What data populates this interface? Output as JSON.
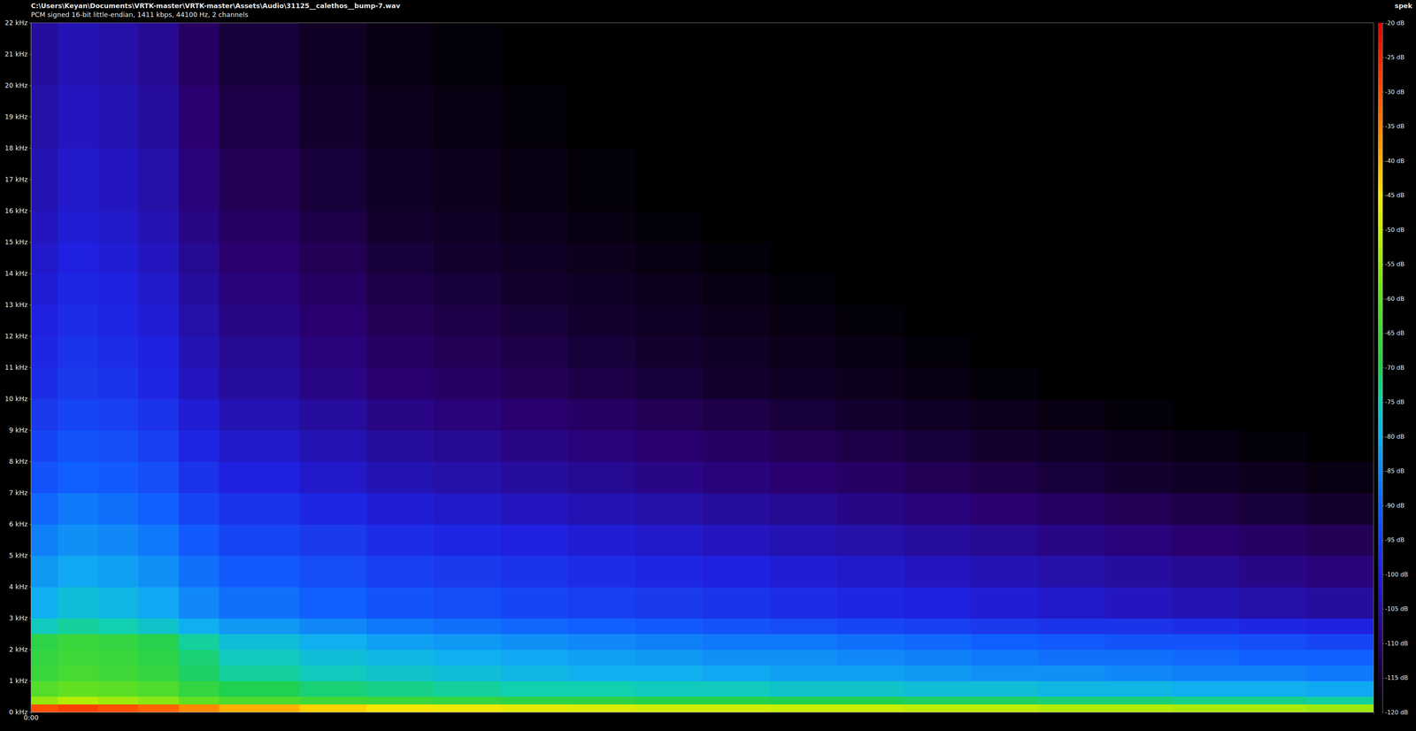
{
  "chart_data": {
    "type": "heatmap",
    "title": "C:\\Users\\Keyan\\Documents\\VRTK-master\\VRTK-master\\Assets\\Audio\\31125__calethos__bump-7.wav",
    "subtitle": "PCM signed 16-bit little-endian, 1411 kbps, 44100 Hz, 2 channels",
    "annotations": [
      "spek"
    ],
    "xlim": [
      0,
      5
    ],
    "xticks": [
      {
        "value": 0,
        "label": "0:00"
      }
    ],
    "ylim": [
      0,
      22
    ],
    "yticks": [
      {
        "value": 0,
        "label": "0 kHz"
      },
      {
        "value": 1,
        "label": "1 kHz"
      },
      {
        "value": 2,
        "label": "2 kHz"
      },
      {
        "value": 3,
        "label": "3 kHz"
      },
      {
        "value": 4,
        "label": "4 kHz"
      },
      {
        "value": 5,
        "label": "5 kHz"
      },
      {
        "value": 6,
        "label": "6 kHz"
      },
      {
        "value": 7,
        "label": "7 kHz"
      },
      {
        "value": 8,
        "label": "8 kHz"
      },
      {
        "value": 9,
        "label": "9 kHz"
      },
      {
        "value": 10,
        "label": "10 kHz"
      },
      {
        "value": 11,
        "label": "11 kHz"
      },
      {
        "value": 12,
        "label": "12 kHz"
      },
      {
        "value": 13,
        "label": "13 kHz"
      },
      {
        "value": 14,
        "label": "14 kHz"
      },
      {
        "value": 15,
        "label": "15 kHz"
      },
      {
        "value": 16,
        "label": "16 kHz"
      },
      {
        "value": 17,
        "label": "17 kHz"
      },
      {
        "value": 18,
        "label": "18 kHz"
      },
      {
        "value": 19,
        "label": "19 kHz"
      },
      {
        "value": 20,
        "label": "20 kHz"
      },
      {
        "value": 21,
        "label": "21 kHz"
      },
      {
        "value": 22,
        "label": "22 kHz"
      }
    ],
    "x_edges": [
      0,
      0.1,
      0.25,
      0.4,
      0.55,
      0.7,
      1,
      1.25,
      1.5,
      1.75,
      2,
      2.25,
      2.5,
      2.75,
      3,
      3.25,
      3.5,
      3.75,
      4,
      4.25,
      4.5,
      4.75,
      5
    ],
    "y_edges": [
      0,
      0.25,
      0.5,
      1,
      1.5,
      2,
      2.5,
      3,
      4,
      5,
      6,
      7,
      8,
      9,
      10,
      11,
      12,
      13,
      14,
      15,
      16,
      17,
      18,
      19,
      20,
      21,
      22
    ],
    "cells": [
      [
        -30,
        -28,
        -30,
        -32,
        -36,
        -40,
        -43,
        -45,
        -46,
        -47,
        -48,
        -49,
        -49,
        -50,
        -50,
        -51,
        -51,
        -52,
        -52,
        -53,
        -53,
        -54
      ],
      [
        -55,
        -52,
        -54,
        -56,
        -60,
        -63,
        -65,
        -66,
        -67,
        -68,
        -68,
        -69,
        -69,
        -70,
        -70,
        -71,
        -71,
        -72,
        -72,
        -73,
        -73,
        -74
      ],
      [
        -62,
        -60,
        -61,
        -63,
        -67,
        -70,
        -72,
        -73,
        -74,
        -75,
        -75,
        -76,
        -76,
        -77,
        -77,
        -78,
        -78,
        -79,
        -79,
        -80,
        -80,
        -81
      ],
      [
        -66,
        -64,
        -65,
        -67,
        -71,
        -74,
        -76,
        -77,
        -78,
        -79,
        -80,
        -80,
        -81,
        -82,
        -82,
        -83,
        -84,
        -84,
        -85,
        -86,
        -86,
        -87
      ],
      [
        -67,
        -65,
        -66,
        -68,
        -72,
        -76,
        -78,
        -79,
        -80,
        -81,
        -82,
        -83,
        -84,
        -84,
        -85,
        -86,
        -87,
        -88,
        -88,
        -89,
        -90,
        -90
      ],
      [
        -68,
        -66,
        -67,
        -69,
        -74,
        -78,
        -80,
        -82,
        -83,
        -84,
        -85,
        -86,
        -87,
        -87,
        -88,
        -89,
        -90,
        -91,
        -92,
        -92,
        -93,
        -94
      ],
      [
        -76,
        -74,
        -75,
        -77,
        -80,
        -83,
        -85,
        -87,
        -88,
        -89,
        -90,
        -91,
        -92,
        -93,
        -94,
        -95,
        -96,
        -97,
        -97,
        -98,
        -99,
        -100
      ],
      [
        -80,
        -78,
        -79,
        -81,
        -85,
        -88,
        -90,
        -92,
        -93,
        -94,
        -95,
        -96,
        -97,
        -98,
        -99,
        -100,
        -101,
        -102,
        -103,
        -104,
        -105,
        -106
      ],
      [
        -83,
        -81,
        -82,
        -84,
        -88,
        -91,
        -93,
        -95,
        -96,
        -97,
        -98,
        -99,
        -100,
        -101,
        -102,
        -103,
        -104,
        -105,
        -106,
        -107,
        -108,
        -109
      ],
      [
        -86,
        -84,
        -85,
        -87,
        -91,
        -94,
        -96,
        -98,
        -99,
        -100,
        -101,
        -102,
        -103,
        -104,
        -105,
        -106,
        -107,
        -108,
        -109,
        -110,
        -111,
        -112
      ],
      [
        -89,
        -87,
        -88,
        -90,
        -94,
        -97,
        -99,
        -101,
        -102,
        -103,
        -104,
        -105,
        -106,
        -107,
        -108,
        -109,
        -110,
        -111,
        -112,
        -113,
        -114,
        -115
      ],
      [
        -92,
        -90,
        -91,
        -93,
        -97,
        -100,
        -102,
        -104,
        -105,
        -106,
        -107,
        -108,
        -109,
        -110,
        -111,
        -112,
        -113,
        -114,
        -115,
        -116,
        -117,
        -118
      ],
      [
        -94,
        -92,
        -93,
        -95,
        -99,
        -102,
        -104,
        -106,
        -107,
        -108,
        -109,
        -110,
        -111,
        -112,
        -113,
        -114,
        -115,
        -116,
        -117,
        -118,
        -119,
        -120
      ],
      [
        -96,
        -94,
        -95,
        -97,
        -101,
        -104,
        -106,
        -108,
        -109,
        -110,
        -111,
        -112,
        -113,
        -114,
        -115,
        -116,
        -117,
        -118,
        -119,
        -120,
        -120,
        -120
      ],
      [
        -98,
        -96,
        -97,
        -99,
        -103,
        -106,
        -108,
        -110,
        -111,
        -112,
        -113,
        -114,
        -115,
        -116,
        -117,
        -118,
        -119,
        -120,
        -120,
        -120,
        -120,
        -120
      ],
      [
        -99,
        -97,
        -98,
        -100,
        -104,
        -107,
        -109,
        -111,
        -112,
        -113,
        -114,
        -115,
        -116,
        -117,
        -118,
        -119,
        -120,
        -120,
        -120,
        -120,
        -120,
        -120
      ],
      [
        -100,
        -98,
        -99,
        -101,
        -105,
        -108,
        -110,
        -112,
        -113,
        -114,
        -115,
        -116,
        -117,
        -118,
        -119,
        -120,
        -120,
        -120,
        -120,
        -120,
        -120,
        -120
      ],
      [
        -101,
        -99,
        -100,
        -102,
        -106,
        -109,
        -111,
        -113,
        -114,
        -115,
        -116,
        -117,
        -118,
        -119,
        -120,
        -120,
        -120,
        -120,
        -120,
        -120,
        -120,
        -120
      ],
      [
        -102,
        -100,
        -101,
        -103,
        -107,
        -110,
        -112,
        -114,
        -115,
        -116,
        -117,
        -118,
        -119,
        -120,
        -120,
        -120,
        -120,
        -120,
        -120,
        -120,
        -120,
        -120
      ],
      [
        -103,
        -101,
        -102,
        -104,
        -108,
        -111,
        -113,
        -115,
        -116,
        -117,
        -118,
        -119,
        -120,
        -120,
        -120,
        -120,
        -120,
        -120,
        -120,
        -120,
        -120,
        -120
      ],
      [
        -104,
        -102,
        -103,
        -105,
        -109,
        -112,
        -114,
        -116,
        -117,
        -118,
        -119,
        -120,
        -120,
        -120,
        -120,
        -120,
        -120,
        -120,
        -120,
        -120,
        -120,
        -120
      ],
      [
        -104,
        -102,
        -103,
        -105,
        -109,
        -112,
        -114,
        -116,
        -117,
        -118,
        -119,
        -120,
        -120,
        -120,
        -120,
        -120,
        -120,
        -120,
        -120,
        -120,
        -120,
        -120
      ],
      [
        -105,
        -103,
        -104,
        -106,
        -110,
        -113,
        -115,
        -117,
        -118,
        -119,
        -120,
        -120,
        -120,
        -120,
        -120,
        -120,
        -120,
        -120,
        -120,
        -120,
        -120,
        -120
      ],
      [
        -105,
        -103,
        -104,
        -106,
        -110,
        -113,
        -115,
        -117,
        -118,
        -119,
        -120,
        -120,
        -120,
        -120,
        -120,
        -120,
        -120,
        -120,
        -120,
        -120,
        -120,
        -120
      ],
      [
        -106,
        -104,
        -105,
        -107,
        -111,
        -114,
        -116,
        -118,
        -119,
        -120,
        -120,
        -120,
        -120,
        -120,
        -120,
        -120,
        -120,
        -120,
        -120,
        -120,
        -120,
        -120
      ],
      [
        -106,
        -104,
        -105,
        -107,
        -111,
        -114,
        -116,
        -118,
        -119,
        -120,
        -120,
        -120,
        -120,
        -120,
        -120,
        -120,
        -120,
        -120,
        -120,
        -120,
        -120,
        -120
      ]
    ],
    "colorbar_range": [
      -120,
      -20
    ],
    "colorbar_ticks": [
      {
        "value": -120,
        "label": "-120 dB"
      },
      {
        "value": -115,
        "label": "-115 dB"
      },
      {
        "value": -110,
        "label": "-110 dB"
      },
      {
        "value": -105,
        "label": "-105 dB"
      },
      {
        "value": -100,
        "label": "-100 dB"
      },
      {
        "value": -95,
        "label": "-95 dB"
      },
      {
        "value": -90,
        "label": "-90 dB"
      },
      {
        "value": -85,
        "label": "-85 dB"
      },
      {
        "value": -80,
        "label": "-80 dB"
      },
      {
        "value": -75,
        "label": "-75 dB"
      },
      {
        "value": -70,
        "label": "-70 dB"
      },
      {
        "value": -65,
        "label": "-65 dB"
      },
      {
        "value": -60,
        "label": "-60 dB"
      },
      {
        "value": -55,
        "label": "-55 dB"
      },
      {
        "value": -50,
        "label": "-50 dB"
      },
      {
        "value": -45,
        "label": "-45 dB"
      },
      {
        "value": -40,
        "label": "-40 dB"
      },
      {
        "value": -35,
        "label": "-35 dB"
      },
      {
        "value": -30,
        "label": "-30 dB"
      },
      {
        "value": -25,
        "label": "-25 dB"
      },
      {
        "value": -20,
        "label": "-20 dB"
      }
    ]
  }
}
